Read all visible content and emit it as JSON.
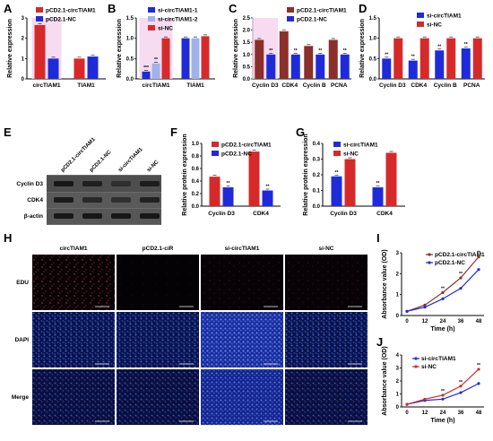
{
  "panel_letters": [
    "A",
    "B",
    "C",
    "D",
    "E",
    "F",
    "G",
    "H",
    "I",
    "J"
  ],
  "colors": {
    "red": "#d62a2a",
    "blue": "#1f2bd9",
    "lightblue": "#9fb3ea",
    "brown": "#8b2f2a",
    "highlight": "#f4d2ee"
  },
  "chart_data": [
    {
      "id": "A",
      "type": "bar",
      "ylabel": "Relative expression",
      "ylim": [
        0,
        3
      ],
      "yticks": [
        "0",
        "1",
        "2",
        "3"
      ],
      "categories": [
        "circTIAM1",
        "TIAM1"
      ],
      "series": [
        {
          "name": "pCD2.1-circTIAM1",
          "color": "#d62a2a",
          "values": [
            2.65,
            1.0
          ]
        },
        {
          "name": "pCD2.1-NC",
          "color": "#1f2bd9",
          "values": [
            1.0,
            1.1
          ]
        }
      ],
      "annotations": [
        "***"
      ]
    },
    {
      "id": "B",
      "type": "bar",
      "ylabel": "Relative expression",
      "ylim": [
        0,
        1.5
      ],
      "yticks": [
        "0.0",
        "0.5",
        "1.0",
        "1.5"
      ],
      "categories": [
        "circTIAM1",
        "TIAM1"
      ],
      "series": [
        {
          "name": "si-circTIAM1-1",
          "color": "#1f2bd9",
          "values": [
            0.18,
            1.0
          ]
        },
        {
          "name": "si-circTIAM1-2",
          "color": "#9fb3ea",
          "values": [
            0.38,
            1.0
          ]
        },
        {
          "name": "si-NC",
          "color": "#d62a2a",
          "values": [
            1.0,
            1.05
          ]
        }
      ],
      "annotations": [
        "***",
        "**"
      ]
    },
    {
      "id": "C",
      "type": "bar",
      "ylabel": "Relative expression",
      "ylim": [
        0,
        2.5
      ],
      "yticks": [
        "0.0",
        "0.5",
        "1.0",
        "1.5",
        "2.0",
        "2.5"
      ],
      "categories": [
        "Cyclin D3",
        "CDK4",
        "Cyclin B",
        "PCNA"
      ],
      "series": [
        {
          "name": "pCD2.1-circTIAM1",
          "color": "#8b2f2a",
          "values": [
            1.6,
            1.95,
            1.35,
            1.6
          ]
        },
        {
          "name": "pCD2.1-NC",
          "color": "#1f2bd9",
          "values": [
            1.0,
            1.0,
            1.0,
            1.0
          ]
        }
      ],
      "annotations": [
        "**",
        "**",
        "**",
        "**"
      ]
    },
    {
      "id": "D",
      "type": "bar",
      "ylabel": "Relative expression",
      "ylim": [
        0,
        1.5
      ],
      "yticks": [
        "0.0",
        "0.5",
        "1.0",
        "1.5"
      ],
      "categories": [
        "Cyclin D3",
        "CDK4",
        "Cyclin B",
        "PCNA"
      ],
      "series": [
        {
          "name": "si-circTIAM1",
          "color": "#1f2bd9",
          "values": [
            0.5,
            0.45,
            0.7,
            0.75
          ]
        },
        {
          "name": "si-NC",
          "color": "#d62a2a",
          "values": [
            1.0,
            1.0,
            1.0,
            1.0
          ]
        }
      ],
      "annotations": [
        "**",
        "**",
        "**",
        "**"
      ]
    },
    {
      "id": "F",
      "type": "bar",
      "ylabel": "Relative protein expression",
      "ylim": [
        0,
        1.0
      ],
      "yticks": [
        "0.0",
        "0.2",
        "0.4",
        "0.6",
        "0.8",
        "1.0"
      ],
      "categories": [
        "Cyclin D3",
        "CDK4"
      ],
      "series": [
        {
          "name": "pCD2.1-circTIAM1",
          "color": "#d62a2a",
          "values": [
            0.47,
            0.87
          ]
        },
        {
          "name": "pCD2.1-NC",
          "color": "#1f2bd9",
          "values": [
            0.3,
            0.25
          ]
        }
      ],
      "annotations": [
        "**",
        "**"
      ]
    },
    {
      "id": "G",
      "type": "bar",
      "ylabel": "Relative protein expression",
      "ylim": [
        0,
        0.4
      ],
      "yticks": [
        "0.0",
        "0.1",
        "0.2",
        "0.3",
        "0.4"
      ],
      "categories": [
        "Cyclin D3",
        "CDK4"
      ],
      "series": [
        {
          "name": "si-circTIAM1",
          "color": "#1f2bd9",
          "values": [
            0.19,
            0.12
          ]
        },
        {
          "name": "si-NC",
          "color": "#d62a2a",
          "values": [
            0.3,
            0.34
          ]
        }
      ],
      "annotations": [
        "**",
        "**"
      ]
    },
    {
      "id": "I",
      "type": "line",
      "ylabel": "Absorbance value (OD)",
      "xlabel": "Time (h)",
      "ylim": [
        0,
        3
      ],
      "yticks": [
        "0",
        "1",
        "2",
        "3"
      ],
      "x": [
        "0",
        "12",
        "24",
        "36",
        "48"
      ],
      "series": [
        {
          "name": "pCD2.1-circTIAM1",
          "color": "#8b2f2a",
          "values": [
            0.2,
            0.5,
            1.1,
            1.8,
            2.8
          ]
        },
        {
          "name": "pCD2.1-NC",
          "color": "#1f2bd9",
          "values": [
            0.2,
            0.4,
            0.8,
            1.3,
            2.2
          ]
        }
      ],
      "annotations": [
        "**",
        "**",
        "**"
      ]
    },
    {
      "id": "J",
      "type": "line",
      "ylabel": "Absorbance value (OD)",
      "xlabel": "Time (h)",
      "ylim": [
        0,
        4
      ],
      "yticks": [
        "0",
        "1",
        "2",
        "3",
        "4"
      ],
      "x": [
        "0",
        "12",
        "24",
        "36",
        "48"
      ],
      "series": [
        {
          "name": "si-circTIAM1",
          "color": "#1f2bd9",
          "values": [
            0.2,
            0.5,
            0.6,
            1.1,
            1.8
          ]
        },
        {
          "name": "si-NC",
          "color": "#d62a2a",
          "values": [
            0.2,
            0.6,
            0.9,
            1.6,
            2.9
          ]
        }
      ],
      "annotations": [
        "**",
        "**",
        "**"
      ]
    }
  ],
  "panel_e": {
    "lanes": [
      "pCD2.1-circTIAM1",
      "pCD2.1-NC",
      "si-circTIAM1",
      "si-NC"
    ],
    "rows": [
      "Cyclin D3",
      "CDK4",
      "β-actin"
    ]
  },
  "panel_h": {
    "columns": [
      "circTIAM1",
      "pCD2.1-ciR",
      "si-circTIAM1",
      "si-NC"
    ],
    "rows": [
      "EDU",
      "DAPI",
      "Merge"
    ]
  }
}
